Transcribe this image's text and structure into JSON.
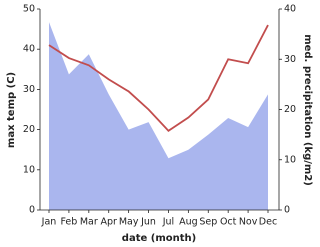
{
  "chart_data": {
    "type": "line_area",
    "categories": [
      "Jan",
      "Feb",
      "Mar",
      "Apr",
      "May",
      "Jun",
      "Jul",
      "Aug",
      "Sep",
      "Oct",
      "Nov",
      "Dec"
    ],
    "x_label": "date (month)",
    "y_label": "max temp (C)",
    "y2_label": "med. precipitation (kg/m2)",
    "ylim": [
      0,
      50
    ],
    "yticks": [
      0,
      10,
      20,
      30,
      40,
      50
    ],
    "y2lim": [
      0,
      40
    ],
    "y2ticks": [
      0,
      10,
      20,
      30,
      40
    ],
    "series": [
      {
        "name": "med. precipitation",
        "type": "area",
        "axis": "y2",
        "color": "#aab6ee",
        "values": [
          37.4,
          27,
          31,
          23,
          16,
          17.5,
          10.3,
          12,
          15,
          18.3,
          16.5,
          23
        ]
      },
      {
        "name": "max temp",
        "type": "line",
        "axis": "y",
        "color": "#c24d4d",
        "values": [
          41,
          37.8,
          36,
          32.5,
          29.5,
          25,
          19.7,
          23,
          27.5,
          37.5,
          36.5,
          46
        ]
      }
    ]
  }
}
